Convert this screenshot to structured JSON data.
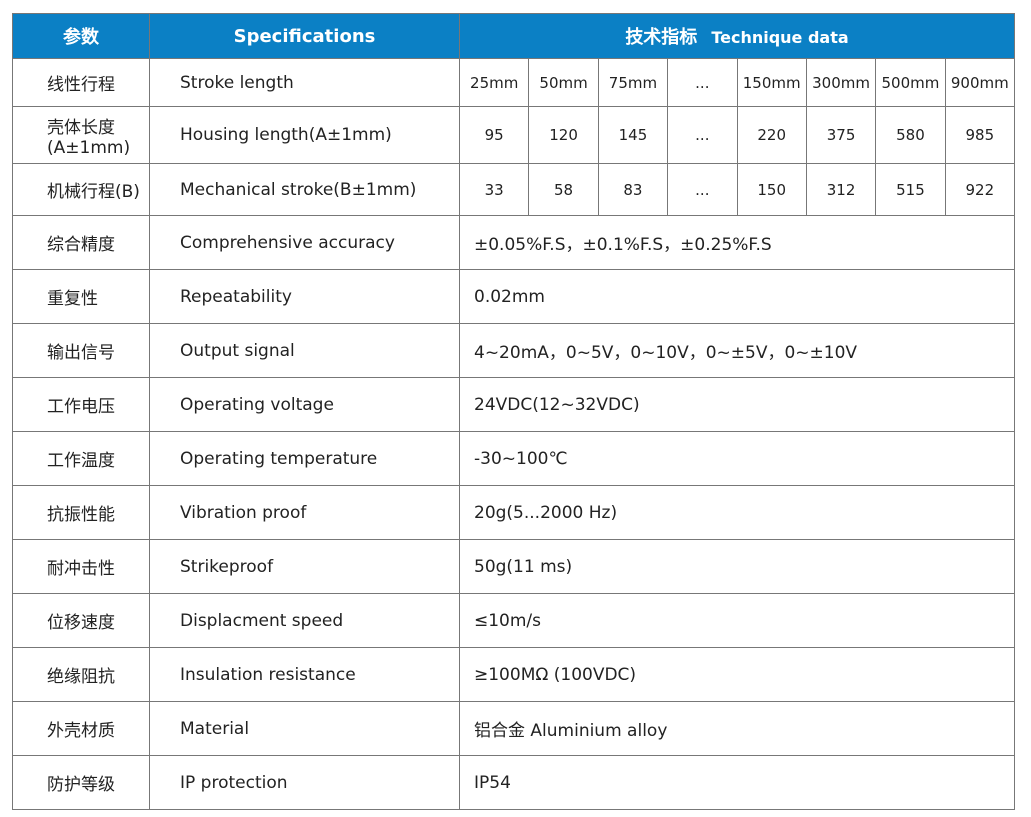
{
  "header": {
    "param_cn": "参数",
    "specs": "Specifications",
    "tech_cn": "技术指标",
    "tech_en": "Technique data",
    "color": "#0b80c5"
  },
  "size_rows": [
    {
      "cn": "线性行程",
      "en": "Stroke length",
      "values": [
        "25mm",
        "50mm",
        "75mm",
        "...",
        "150mm",
        "300mm",
        "500mm",
        "900mm"
      ]
    },
    {
      "cn": "壳体长度(A±1mm)",
      "en": "Housing length(A±1mm)",
      "values": [
        "95",
        "120",
        "145",
        "...",
        "220",
        "375",
        "580",
        "985"
      ]
    },
    {
      "cn": "机械行程(B)",
      "en": "Mechanical stroke(B±1mm)",
      "values": [
        "33",
        "58",
        "83",
        "...",
        "150",
        "312",
        "515",
        "922"
      ]
    }
  ],
  "rows": [
    {
      "cn": "综合精度",
      "en": "Comprehensive accuracy",
      "value": "±0.05%F.S，±0.1%F.S，±0.25%F.S"
    },
    {
      "cn": "重复性",
      "en": "Repeatability",
      "value": "0.02mm"
    },
    {
      "cn": "输出信号",
      "en": "Output signal",
      "value": "4~20mA，0~5V，0~10V，0~±5V，0~±10V"
    },
    {
      "cn": "工作电压",
      "en": "Operating voltage",
      "value": "24VDC(12~32VDC)"
    },
    {
      "cn": "工作温度",
      "en": "Operating temperature",
      "value": "-30~100℃"
    },
    {
      "cn": "抗振性能",
      "en": "Vibration  proof",
      "value": "20g(5...2000 Hz)"
    },
    {
      "cn": "耐冲击性",
      "en": "Strikeproof",
      "value": "50g(11 ms)"
    },
    {
      "cn": "位移速度",
      "en": "Displacment speed",
      "value": "≤10m/s"
    },
    {
      "cn": "绝缘阻抗",
      "en": "Insulation resistance",
      "value": "≥100MΩ (100VDC)"
    },
    {
      "cn": "外壳材质",
      "en": "Material",
      "value": "铝合金  Aluminium alloy"
    },
    {
      "cn": "防护等级",
      "en": "IP  protection",
      "value": "IP54"
    }
  ]
}
